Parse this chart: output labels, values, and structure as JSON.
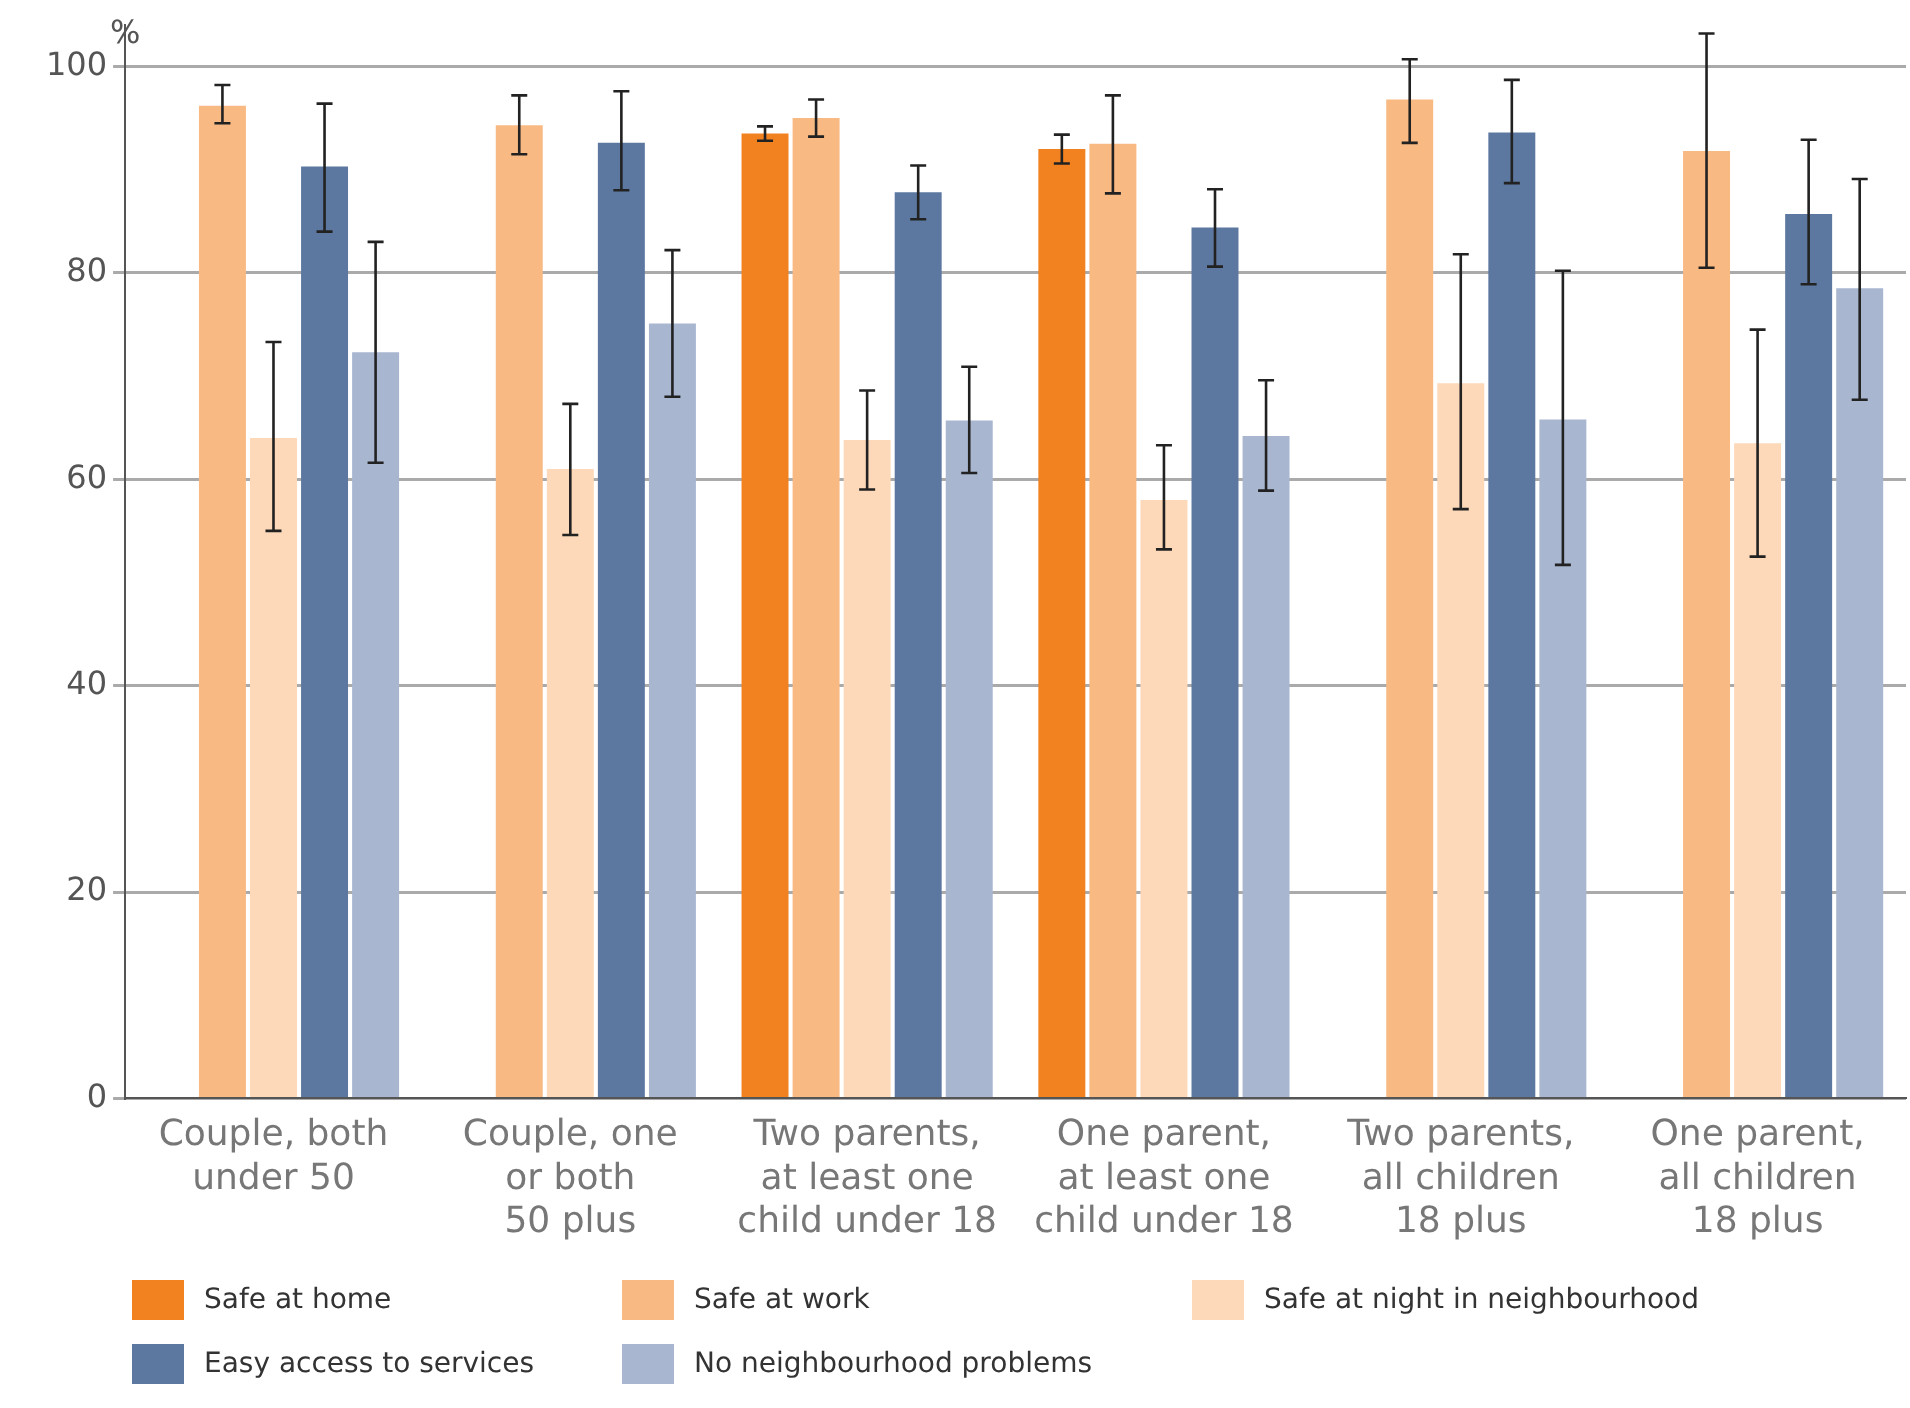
{
  "chart_data": {
    "type": "bar",
    "ylabel": "%",
    "categories": [
      "Couple, both\nunder 50",
      "Couple, one\nor both\n50 plus",
      "Two parents,\nat least one\nchild under 18",
      "One parent,\nat least one\nchild under 18",
      "Two parents,\nall children\n18 plus",
      "One parent,\nall children\n18 plus"
    ],
    "series": [
      {
        "name": "Safe at home",
        "color": "#f28120",
        "values": [
          null,
          null,
          93.5,
          92,
          null,
          null
        ],
        "errors": [
          null,
          null,
          [
            92.8,
            94.2
          ],
          [
            90.6,
            93.4
          ],
          null,
          null
        ]
      },
      {
        "name": "Safe at work",
        "color": "#f9b982",
        "values": [
          96.2,
          94.3,
          95,
          92.5,
          96.8,
          91.8
        ],
        "errors": [
          [
            94.5,
            98.2
          ],
          [
            91.5,
            97.2
          ],
          [
            93.2,
            96.8
          ],
          [
            87.7,
            97.2
          ],
          [
            92.6,
            100.7
          ],
          [
            80.5,
            103.2
          ]
        ]
      },
      {
        "name": "Safe at night in neighbourhood",
        "color": "#fdd9b9",
        "values": [
          64,
          61,
          63.8,
          58,
          69.3,
          63.5
        ],
        "errors": [
          [
            55,
            73.3
          ],
          [
            54.6,
            67.3
          ],
          [
            59,
            68.6
          ],
          [
            53.2,
            63.3
          ],
          [
            57.1,
            81.8
          ],
          [
            52.5,
            74.5
          ]
        ]
      },
      {
        "name": "Easy access to services",
        "color": "#5d78a0",
        "values": [
          90.3,
          92.6,
          87.8,
          84.4,
          93.6,
          85.7
        ],
        "errors": [
          [
            84,
            96.4
          ],
          [
            88,
            97.6
          ],
          [
            85.2,
            90.4
          ],
          [
            80.6,
            88.1
          ],
          [
            88.7,
            98.7
          ],
          [
            78.9,
            92.9
          ]
        ]
      },
      {
        "name": "No neighbourhood problems",
        "color": "#a9b6d0",
        "values": [
          72.3,
          75.1,
          65.7,
          64.2,
          65.8,
          78.5
        ],
        "errors": [
          [
            61.6,
            83
          ],
          [
            68,
            82.2
          ],
          [
            60.6,
            70.9
          ],
          [
            58.9,
            69.6
          ],
          [
            51.7,
            80.2
          ],
          [
            67.7,
            89.1
          ]
        ]
      }
    ],
    "ylim": [
      0,
      104
    ],
    "yticks": [
      0,
      20,
      40,
      60,
      80,
      100
    ],
    "grid": "y",
    "legend": "bottom"
  }
}
